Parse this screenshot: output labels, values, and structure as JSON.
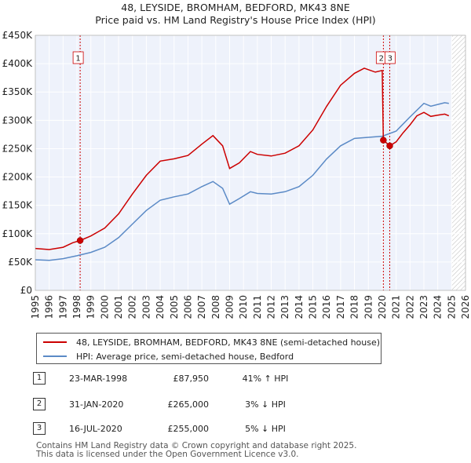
{
  "title_line1": "48, LEYSIDE, BROMHAM, BEDFORD, MK43 8NE",
  "title_line2": "Price paid vs. HM Land Registry's House Price Index (HPI)",
  "chart_data": {
    "type": "line",
    "xlim": [
      1995,
      2026
    ],
    "ylim": [
      0,
      450000
    ],
    "y_ticks": [
      {
        "value": 0,
        "label": "£0"
      },
      {
        "value": 50000,
        "label": "£50K"
      },
      {
        "value": 100000,
        "label": "£100K"
      },
      {
        "value": 150000,
        "label": "£150K"
      },
      {
        "value": 200000,
        "label": "£200K"
      },
      {
        "value": 250000,
        "label": "£250K"
      },
      {
        "value": 300000,
        "label": "£300K"
      },
      {
        "value": 350000,
        "label": "£350K"
      },
      {
        "value": 400000,
        "label": "£400K"
      },
      {
        "value": 450000,
        "label": "£450K"
      }
    ],
    "x_ticks": [
      1995,
      1996,
      1997,
      1998,
      1999,
      2000,
      2001,
      2002,
      2003,
      2004,
      2005,
      2006,
      2007,
      2008,
      2009,
      2010,
      2011,
      2012,
      2013,
      2014,
      2015,
      2016,
      2017,
      2018,
      2019,
      2020,
      2021,
      2022,
      2023,
      2024,
      2025,
      2026
    ],
    "shaded_region_from": 2025.0,
    "series": [
      {
        "name": "48, LEYSIDE, BROMHAM, BEDFORD, MK43 8NE (semi-detached house)",
        "color": "#cc0000",
        "points": [
          [
            1995.0,
            74000
          ],
          [
            1996.0,
            72000
          ],
          [
            1997.0,
            76000
          ],
          [
            1997.7,
            84000
          ],
          [
            1998.23,
            87950
          ],
          [
            1999.0,
            96000
          ],
          [
            2000.0,
            110000
          ],
          [
            2001.0,
            135000
          ],
          [
            2002.0,
            170000
          ],
          [
            2003.0,
            203000
          ],
          [
            2004.0,
            228000
          ],
          [
            2005.0,
            232000
          ],
          [
            2006.0,
            238000
          ],
          [
            2007.0,
            258000
          ],
          [
            2007.8,
            273000
          ],
          [
            2008.5,
            255000
          ],
          [
            2009.0,
            215000
          ],
          [
            2009.7,
            225000
          ],
          [
            2010.5,
            245000
          ],
          [
            2011.0,
            240000
          ],
          [
            2012.0,
            237000
          ],
          [
            2013.0,
            242000
          ],
          [
            2014.0,
            255000
          ],
          [
            2015.0,
            283000
          ],
          [
            2016.0,
            325000
          ],
          [
            2017.0,
            362000
          ],
          [
            2018.0,
            383000
          ],
          [
            2018.7,
            392000
          ],
          [
            2019.5,
            385000
          ],
          [
            2020.0,
            388000
          ],
          [
            2020.08,
            265000
          ],
          [
            2020.54,
            255000
          ],
          [
            2021.0,
            262000
          ],
          [
            2021.5,
            278000
          ],
          [
            2022.0,
            292000
          ],
          [
            2022.5,
            308000
          ],
          [
            2023.0,
            314000
          ],
          [
            2023.5,
            307000
          ],
          [
            2024.0,
            309000
          ],
          [
            2024.5,
            311000
          ],
          [
            2024.8,
            308000
          ]
        ]
      },
      {
        "name": "HPI: Average price, semi-detached house, Bedford",
        "color": "#5b8ac6",
        "points": [
          [
            1995.0,
            54000
          ],
          [
            1996.0,
            53000
          ],
          [
            1997.0,
            56000
          ],
          [
            1998.0,
            61000
          ],
          [
            1999.0,
            67000
          ],
          [
            2000.0,
            76000
          ],
          [
            2001.0,
            93000
          ],
          [
            2002.0,
            117000
          ],
          [
            2003.0,
            141000
          ],
          [
            2004.0,
            159000
          ],
          [
            2005.0,
            165000
          ],
          [
            2006.0,
            170000
          ],
          [
            2007.0,
            183000
          ],
          [
            2007.8,
            192000
          ],
          [
            2008.5,
            180000
          ],
          [
            2009.0,
            152000
          ],
          [
            2009.7,
            162000
          ],
          [
            2010.5,
            174000
          ],
          [
            2011.0,
            171000
          ],
          [
            2012.0,
            170000
          ],
          [
            2013.0,
            174000
          ],
          [
            2014.0,
            183000
          ],
          [
            2015.0,
            203000
          ],
          [
            2016.0,
            232000
          ],
          [
            2017.0,
            255000
          ],
          [
            2018.0,
            268000
          ],
          [
            2019.0,
            270000
          ],
          [
            2020.0,
            272000
          ],
          [
            2021.0,
            281000
          ],
          [
            2022.0,
            306000
          ],
          [
            2023.0,
            330000
          ],
          [
            2023.5,
            325000
          ],
          [
            2024.0,
            328000
          ],
          [
            2024.5,
            331000
          ],
          [
            2024.8,
            330000
          ]
        ]
      }
    ],
    "sales": [
      {
        "marker": "1",
        "x": 1998.23,
        "value": 87950
      },
      {
        "marker": "2",
        "x": 2020.08,
        "value": 265000
      },
      {
        "marker": "3",
        "x": 2020.54,
        "value": 255000
      }
    ]
  },
  "legend": {
    "property_label": "48, LEYSIDE, BROMHAM, BEDFORD, MK43 8NE (semi-detached house)",
    "hpi_label": "HPI: Average price, semi-detached house, Bedford",
    "property_color": "#cc0000",
    "hpi_color": "#5b8ac6"
  },
  "transactions": [
    {
      "num": "1",
      "date": "23-MAR-1998",
      "price": "£87,950",
      "hpi": "41% ↑ HPI"
    },
    {
      "num": "2",
      "date": "31-JAN-2020",
      "price": "£265,000",
      "hpi": "3% ↓ HPI"
    },
    {
      "num": "3",
      "date": "16-JUL-2020",
      "price": "£255,000",
      "hpi": "5% ↓ HPI"
    }
  ],
  "footer_line1": "Contains HM Land Registry data © Crown copyright and database right 2025.",
  "footer_line2": "This data is licensed under the Open Government Licence v3.0."
}
